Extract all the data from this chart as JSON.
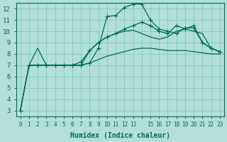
{
  "xlabel": "Humidex (Indice chaleur)",
  "ylabel": "",
  "background_color": "#b2dfdb",
  "grid_color": "#80cbc4",
  "line_color": "#00695c",
  "xlim": [
    -0.5,
    23.5
  ],
  "ylim": [
    2.5,
    12.5
  ],
  "xtick_vals": [
    0,
    1,
    2,
    3,
    4,
    5,
    6,
    7,
    8,
    9,
    10,
    11,
    12,
    13,
    14,
    15,
    16,
    17,
    18,
    19,
    20,
    21,
    22,
    23
  ],
  "xtick_labels": [
    "0",
    "1",
    "2",
    "3",
    "4",
    "5",
    "6",
    "7",
    "8",
    "9",
    "10",
    "11",
    "12",
    "13",
    "",
    "15",
    "16",
    "17",
    "18",
    "19",
    "20",
    "21",
    "22",
    "23"
  ],
  "yticks": [
    3,
    4,
    5,
    6,
    7,
    8,
    9,
    10,
    11,
    12
  ],
  "series": [
    {
      "x": [
        0,
        1,
        2,
        3,
        4,
        5,
        6,
        7,
        8,
        9,
        10,
        11,
        12,
        13,
        14,
        15,
        16,
        17,
        18,
        19,
        20,
        21,
        22,
        23
      ],
      "y": [
        3.0,
        7.0,
        7.0,
        7.0,
        7.0,
        7.0,
        7.0,
        7.0,
        7.2,
        8.5,
        11.3,
        11.4,
        12.1,
        12.4,
        12.4,
        11.0,
        10.2,
        10.0,
        9.8,
        10.3,
        10.3,
        9.0,
        8.5,
        8.2
      ],
      "marker": "+"
    },
    {
      "x": [
        0,
        1,
        2,
        3,
        4,
        5,
        6,
        7,
        8,
        9,
        10,
        11,
        12,
        13,
        14,
        15,
        16,
        17,
        18,
        19,
        20,
        21,
        22,
        23
      ],
      "y": [
        3.0,
        7.0,
        8.5,
        7.0,
        7.0,
        7.0,
        7.0,
        7.0,
        8.3,
        9.0,
        9.5,
        9.8,
        10.0,
        10.1,
        9.8,
        9.5,
        9.3,
        9.5,
        10.0,
        10.2,
        10.0,
        9.8,
        8.5,
        8.2
      ],
      "marker": null
    },
    {
      "x": [
        0,
        1,
        2,
        3,
        4,
        5,
        6,
        7,
        8,
        9,
        10,
        11,
        12,
        13,
        14,
        15,
        16,
        17,
        18,
        19,
        20,
        21,
        22,
        23
      ],
      "y": [
        3.0,
        7.0,
        7.0,
        7.0,
        7.0,
        7.0,
        7.0,
        7.0,
        7.2,
        7.5,
        7.8,
        8.0,
        8.2,
        8.4,
        8.5,
        8.5,
        8.4,
        8.3,
        8.3,
        8.3,
        8.2,
        8.1,
        8.0,
        8.0
      ],
      "marker": null
    },
    {
      "x": [
        1,
        2,
        3,
        4,
        5,
        6,
        7,
        8,
        9,
        10,
        11,
        12,
        13,
        14,
        15,
        16,
        17,
        18,
        19,
        20,
        21,
        22,
        23
      ],
      "y": [
        7.0,
        7.0,
        7.0,
        7.0,
        7.0,
        7.0,
        7.3,
        8.3,
        9.0,
        9.5,
        9.8,
        10.2,
        10.5,
        10.8,
        10.5,
        10.0,
        9.8,
        10.5,
        10.2,
        10.5,
        9.0,
        8.5,
        8.2
      ],
      "marker": "+"
    }
  ]
}
